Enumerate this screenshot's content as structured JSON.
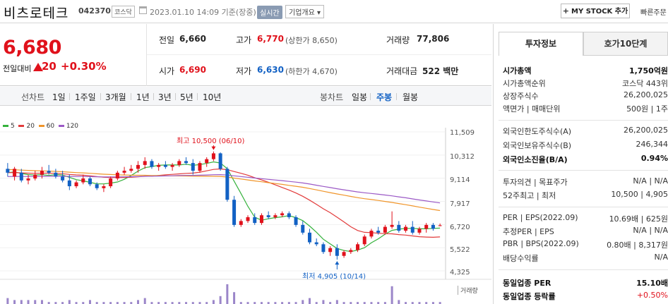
{
  "header": {
    "stock_name": "비츠로테크",
    "stock_code": "042370",
    "market": "코스닥",
    "datetime": "2023.01.10 14:09 기준(장중)",
    "realtime_label": "실시간",
    "corp_overview_label": "기업개요 ▾",
    "mystock_label": "MY STOCK 추가",
    "quick_search_label": "빠른주문"
  },
  "price": {
    "current": "6,680",
    "diff_label": "전일대비",
    "diff_value": "20",
    "diff_percent": "+0.30%"
  },
  "quotes": {
    "prev_close": {
      "label": "전일",
      "value": "6,660"
    },
    "high": {
      "label": "고가",
      "value": "6,770",
      "limit_label": "(상한가 8,650)"
    },
    "volume": {
      "label": "거래량",
      "value": "77,806"
    },
    "open": {
      "label": "시가",
      "value": "6,690"
    },
    "low": {
      "label": "저가",
      "value": "6,630",
      "limit_label": "(하한가 4,670)"
    },
    "trade_amount": {
      "label": "거래대금",
      "value": "522 백만"
    }
  },
  "period_bar": {
    "line_chart_label": "선차트",
    "line_items": [
      "1일",
      "1주일",
      "3개월",
      "1년",
      "3년",
      "5년",
      "10년"
    ],
    "candle_chart_label": "봉차트",
    "candle_items": [
      "일봉",
      "주봉",
      "월봉"
    ],
    "active_candle": "주봉"
  },
  "chart_data": {
    "type": "candlestick",
    "legend": [
      {
        "name": "5",
        "color": "#35b23c"
      },
      {
        "name": "20",
        "color": "#e23b3b"
      },
      {
        "name": "60",
        "color": "#f0952a"
      },
      {
        "name": "120",
        "color": "#9b59c6"
      }
    ],
    "y_ticks": [
      "11,509",
      "10,312",
      "9,114",
      "7,917",
      "6,720",
      "5,522",
      "4,325"
    ],
    "ylim": [
      4325,
      11509
    ],
    "high_annotation": "최고 10,500 (06/10)",
    "low_annotation": "최저 4,905 (10/14)",
    "volume_label": "거래량",
    "up_color": "#e0111b",
    "down_color": "#1261c4",
    "candles": [
      [
        9600,
        9900,
        9200,
        9400
      ],
      [
        9200,
        9700,
        9000,
        9600
      ],
      [
        9400,
        9600,
        8900,
        9000
      ],
      [
        9000,
        9300,
        8800,
        9100
      ],
      [
        9100,
        9500,
        9000,
        9300
      ],
      [
        9300,
        9700,
        9100,
        9500
      ],
      [
        9500,
        9800,
        9300,
        9400
      ],
      [
        9400,
        9600,
        9100,
        9200
      ],
      [
        9200,
        9500,
        8900,
        9000
      ],
      [
        9000,
        9300,
        8500,
        8700
      ],
      [
        8700,
        9000,
        8600,
        8900
      ],
      [
        8900,
        9300,
        8800,
        9100
      ],
      [
        9100,
        9200,
        8700,
        8800
      ],
      [
        8800,
        8900,
        8500,
        8600
      ],
      [
        8600,
        8800,
        8400,
        8700
      ],
      [
        8700,
        9200,
        8600,
        9100
      ],
      [
        9100,
        9500,
        9000,
        9400
      ],
      [
        9400,
        9700,
        9300,
        9500
      ],
      [
        9500,
        9800,
        9400,
        9600
      ],
      [
        9600,
        10000,
        9400,
        9800
      ],
      [
        9800,
        10200,
        9600,
        10000
      ],
      [
        10000,
        10100,
        9600,
        9700
      ],
      [
        9700,
        9900,
        9500,
        9800
      ],
      [
        9800,
        10000,
        9600,
        9700
      ],
      [
        9700,
        9900,
        9500,
        9800
      ],
      [
        9800,
        10100,
        9700,
        10000
      ],
      [
        10000,
        10200,
        9800,
        9900
      ],
      [
        9900,
        10100,
        9300,
        9500
      ],
      [
        9500,
        10000,
        9400,
        9900
      ],
      [
        9900,
        10200,
        9700,
        10100
      ],
      [
        10100,
        10500,
        10000,
        10400
      ],
      [
        10400,
        10450,
        9500,
        9600
      ],
      [
        9600,
        9700,
        7900,
        8000
      ],
      [
        8000,
        8200,
        6600,
        6700
      ],
      [
        6700,
        7000,
        6600,
        6900
      ],
      [
        6900,
        7200,
        6800,
        7100
      ],
      [
        7100,
        7300,
        6700,
        6800
      ],
      [
        6800,
        7300,
        6700,
        7200
      ],
      [
        7200,
        7400,
        7000,
        7100
      ],
      [
        7100,
        7300,
        7000,
        7200
      ],
      [
        7200,
        7400,
        7100,
        7300
      ],
      [
        7300,
        7400,
        7000,
        7100
      ],
      [
        7100,
        7200,
        6600,
        6700
      ],
      [
        6700,
        6900,
        6200,
        6300
      ],
      [
        6300,
        6500,
        5700,
        5800
      ],
      [
        5800,
        6000,
        5600,
        5700
      ],
      [
        5700,
        5800,
        5200,
        5300
      ],
      [
        5300,
        5600,
        5100,
        5500
      ],
      [
        5500,
        5700,
        4905,
        5100
      ],
      [
        5100,
        5400,
        5000,
        5300
      ],
      [
        5300,
        5500,
        5200,
        5400
      ],
      [
        5400,
        5800,
        5300,
        5700
      ],
      [
        5700,
        6200,
        5600,
        6100
      ],
      [
        6100,
        6500,
        6000,
        6400
      ],
      [
        6400,
        6600,
        6200,
        6300
      ],
      [
        6300,
        6700,
        6200,
        6600
      ],
      [
        6600,
        7400,
        6500,
        6700
      ],
      [
        6700,
        6900,
        6300,
        6400
      ],
      [
        6400,
        6700,
        6300,
        6600
      ],
      [
        6600,
        6900,
        6200,
        6300
      ],
      [
        6300,
        6600,
        6200,
        6500
      ],
      [
        6500,
        6800,
        6300,
        6700
      ],
      [
        6700,
        6800,
        6400,
        6500
      ],
      [
        6660,
        6770,
        6630,
        6680
      ]
    ],
    "volumes": [
      3,
      2,
      2,
      2,
      2,
      2,
      1,
      1,
      1,
      2,
      1,
      1,
      2,
      1,
      1,
      1,
      1,
      1,
      1,
      2,
      3,
      1,
      1,
      1,
      1,
      1,
      1,
      1,
      1,
      1,
      2,
      4,
      10,
      6,
      1,
      1,
      1,
      1,
      1,
      1,
      1,
      1,
      1,
      2,
      3,
      1,
      2,
      1,
      2,
      1,
      1,
      1,
      1,
      1,
      1,
      1,
      9,
      2,
      1,
      1,
      1,
      1,
      1,
      1
    ]
  },
  "right_panel": {
    "tabs": [
      {
        "label": "투자정보"
      },
      {
        "label": "호가10단계"
      }
    ],
    "rows": [
      {
        "label": "시가총액",
        "value": "1,750억원",
        "bold": true
      },
      {
        "label": "시가총액순위",
        "value": "코스닥 443위"
      },
      {
        "label": "상장주식수",
        "value": "26,200,025"
      },
      {
        "label": "액면가 | 매매단위",
        "value": "500원 | 1주"
      },
      {
        "label": "외국인한도주식수(A)",
        "value": "26,200,025"
      },
      {
        "label": "외국인보유주식수(B)",
        "value": "246,344"
      },
      {
        "label": "외국인소진율(B/A)",
        "value": "0.94%",
        "bold": true
      },
      {
        "label": "투자의견 | 목표주가",
        "value": "N/A | N/A"
      },
      {
        "label": "52주최고 | 최저",
        "value": "10,500 | 4,905"
      },
      {
        "label": "PER | EPS(2022.09)",
        "value": "10.69배 | 625원"
      },
      {
        "label": "추정PER | EPS",
        "value": "N/A | N/A"
      },
      {
        "label": "PBR | BPS(2022.09)",
        "value": "0.80배 | 8,317원"
      },
      {
        "label": "배당수익률",
        "value": "N/A"
      },
      {
        "label": "동일업종 PER",
        "value": "15.10배",
        "bold": true
      },
      {
        "label": "동일업종 등락률",
        "value": "+0.50%"
      }
    ]
  }
}
